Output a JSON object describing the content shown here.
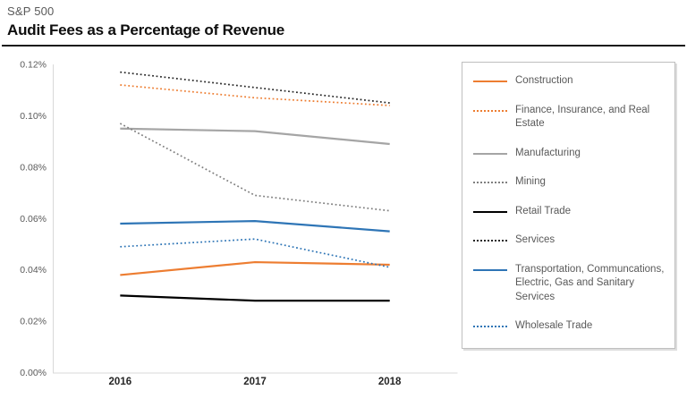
{
  "header": {
    "eyebrow": "S&P 500",
    "title": "Audit Fees as a Percentage of Revenue"
  },
  "chart_data": {
    "type": "line",
    "title": "Audit Fees as a Percentage of Revenue",
    "subtitle": "S&P 500",
    "categories": [
      "2016",
      "2017",
      "2018"
    ],
    "series": [
      {
        "name": "Construction",
        "values": [
          0.038,
          0.043,
          0.042
        ],
        "color": "#ED7D31",
        "style": "solid"
      },
      {
        "name": "Finance, Insurance, and Real Estate",
        "values": [
          0.112,
          0.107,
          0.104
        ],
        "color": "#ED7D31",
        "style": "dotted"
      },
      {
        "name": "Manufacturing",
        "values": [
          0.095,
          0.094,
          0.089
        ],
        "color": "#A5A5A5",
        "style": "solid"
      },
      {
        "name": "Mining",
        "values": [
          0.097,
          0.069,
          0.063
        ],
        "color": "#7F7F7F",
        "style": "dotted"
      },
      {
        "name": "Retail Trade",
        "values": [
          0.03,
          0.028,
          0.028
        ],
        "color": "#000000",
        "style": "solid"
      },
      {
        "name": "Services",
        "values": [
          0.117,
          0.111,
          0.105
        ],
        "color": "#262626",
        "style": "dotted"
      },
      {
        "name": "Transportation, Communcations, Electric, Gas and Sanitary Services",
        "values": [
          0.058,
          0.059,
          0.055
        ],
        "color": "#2E75B6",
        "style": "solid"
      },
      {
        "name": "Wholesale Trade",
        "values": [
          0.049,
          0.052,
          0.041
        ],
        "color": "#2E75B6",
        "style": "dotted"
      }
    ],
    "ylim": [
      0,
      0.12
    ],
    "ytick_step": 0.02,
    "ytick_labels": [
      "0.00%",
      "0.02%",
      "0.04%",
      "0.06%",
      "0.08%",
      "0.10%",
      "0.12%"
    ],
    "xlabel": "",
    "ylabel": "",
    "grid": false,
    "legend_position": "right",
    "axis_color": "#D9D9D9",
    "ytick_color": "#595959",
    "xtick_color": "#262626"
  }
}
